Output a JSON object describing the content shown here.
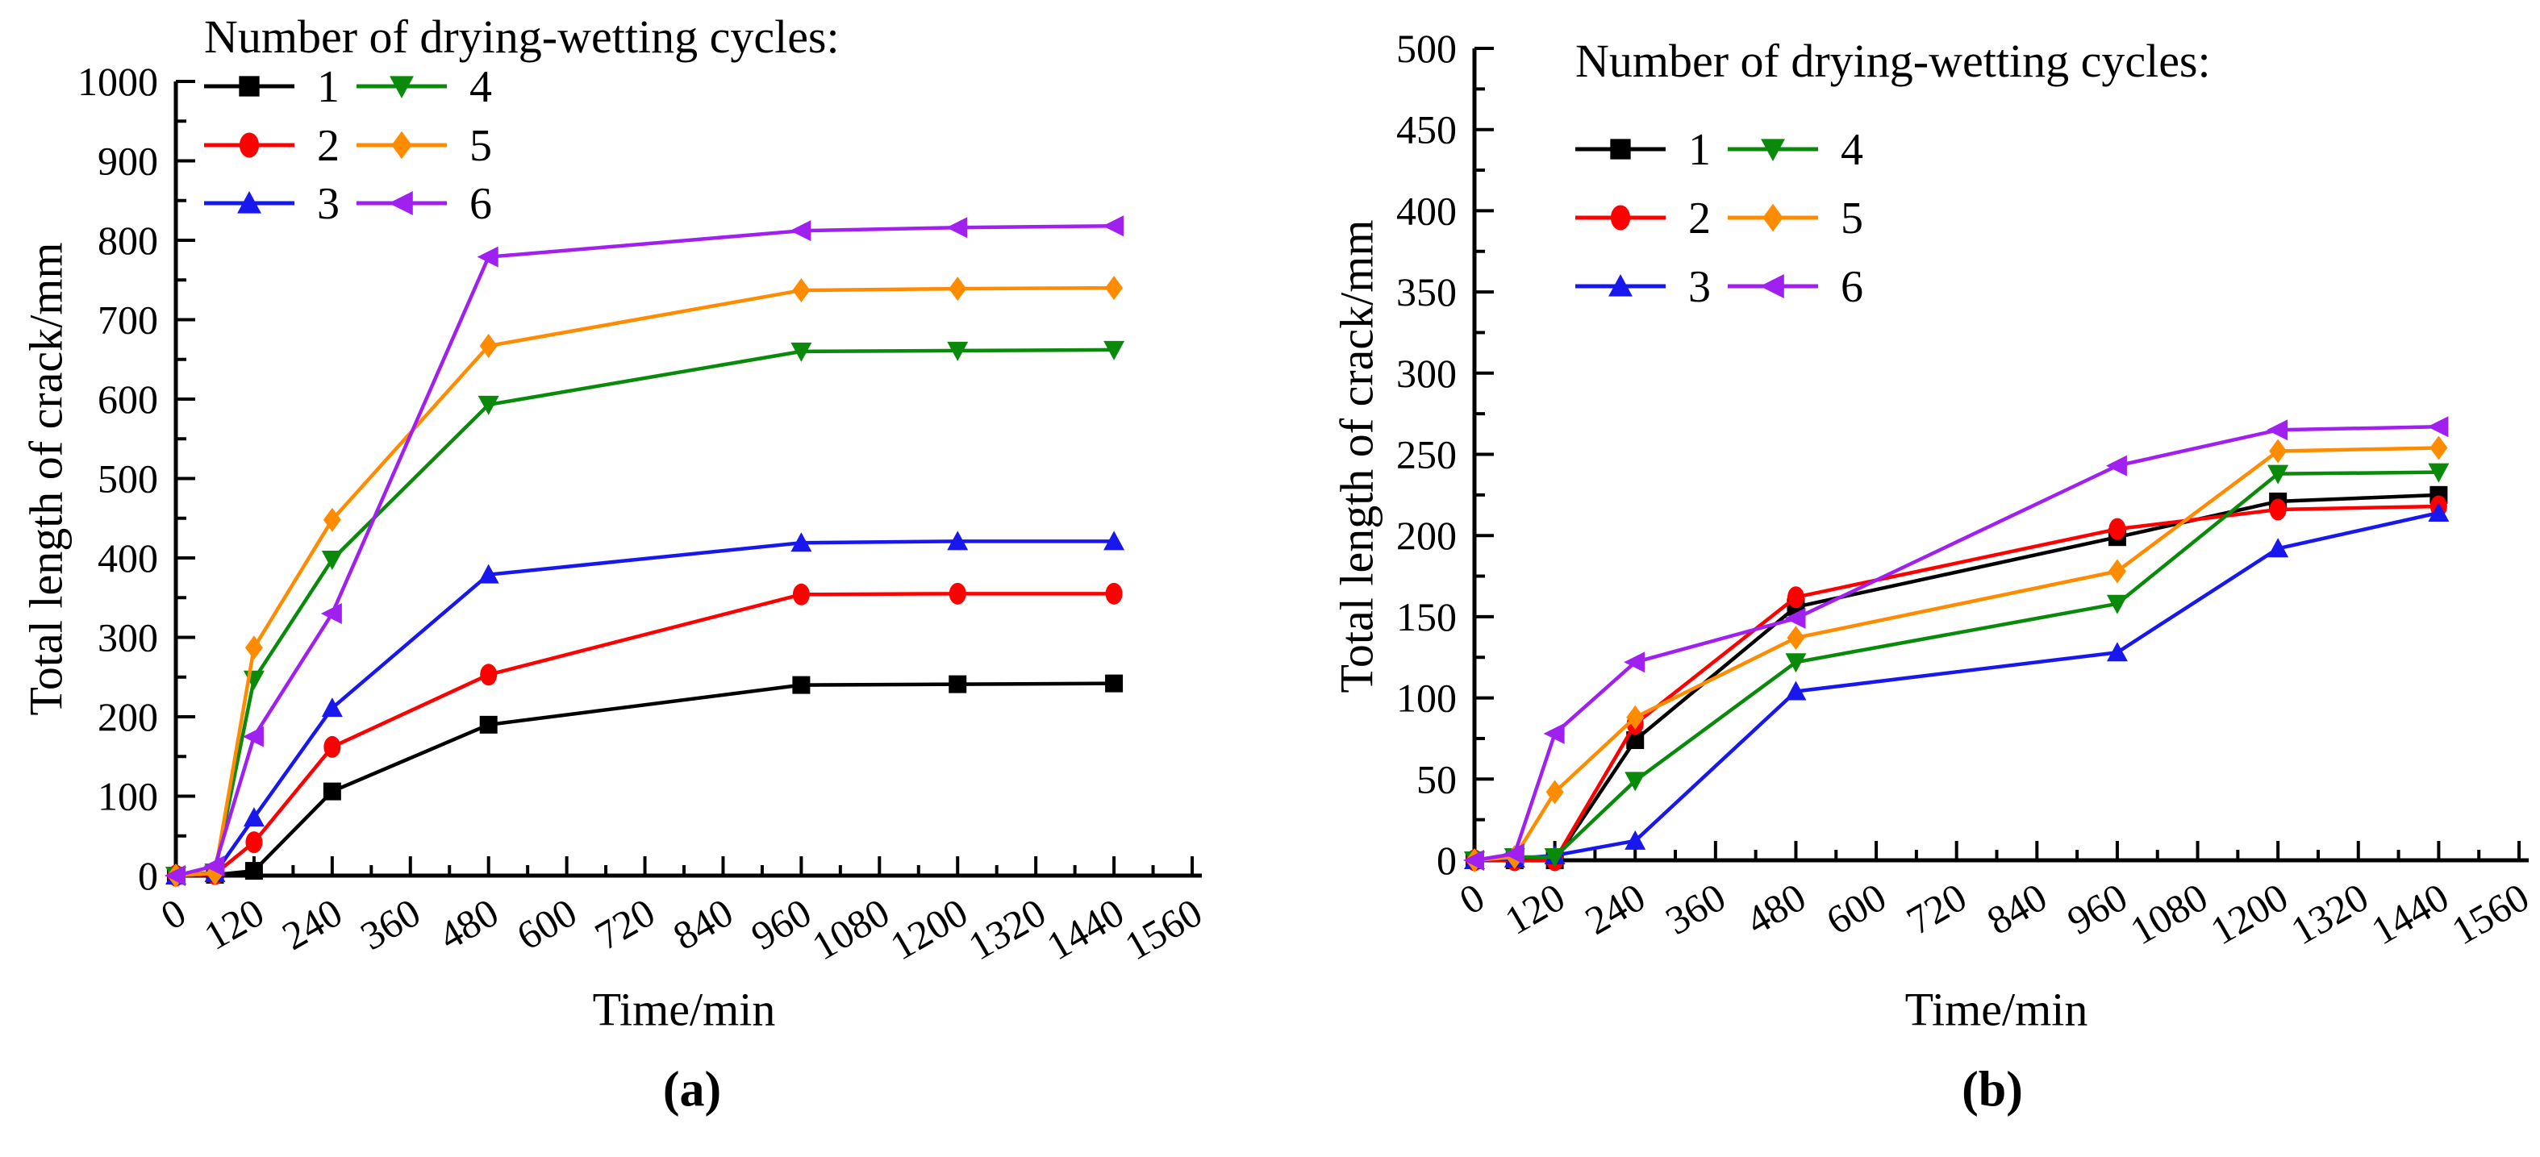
{
  "figure": {
    "panels": [
      {
        "label": "(a)"
      },
      {
        "label": "(b)"
      }
    ]
  },
  "chart_data": [
    {
      "type": "line",
      "title": "",
      "panel": "a",
      "xlabel": "Time/min",
      "ylabel": "Total length of crack/mm",
      "legend_title": "Number of drying-wetting cycles:",
      "legend_position": "top-left",
      "grid": false,
      "xlim": [
        0,
        1560
      ],
      "ylim": [
        0,
        1000
      ],
      "x_major_step": 120,
      "x_minor_step": 60,
      "y_major_step": 100,
      "y_minor_step": 50,
      "x_tick_labels": [
        0,
        120,
        240,
        360,
        480,
        600,
        720,
        840,
        960,
        1080,
        1200,
        1320,
        1440,
        1560
      ],
      "y_tick_labels": [
        0,
        100,
        200,
        300,
        400,
        500,
        600,
        700,
        800,
        900,
        1000
      ],
      "x": [
        0,
        60,
        120,
        240,
        480,
        960,
        1200,
        1440
      ],
      "series": [
        {
          "name": "1",
          "marker": "square",
          "color": "#000000",
          "values": [
            0,
            1,
            6,
            106,
            190,
            240,
            241,
            242
          ]
        },
        {
          "name": "2",
          "marker": "circle",
          "color": "#FF0000",
          "values": [
            0,
            2,
            42,
            162,
            253,
            354,
            355,
            355
          ]
        },
        {
          "name": "3",
          "marker": "triangle-up",
          "color": "#1717EE",
          "values": [
            0,
            3,
            73,
            211,
            379,
            419,
            421,
            421
          ]
        },
        {
          "name": "4",
          "marker": "triangle-down",
          "color": "#0A8A0A",
          "values": [
            0,
            4,
            247,
            398,
            593,
            660,
            661,
            662
          ]
        },
        {
          "name": "5",
          "marker": "diamond",
          "color": "#FF8C00",
          "values": [
            0,
            3,
            287,
            448,
            667,
            737,
            739,
            740
          ]
        },
        {
          "name": "6",
          "marker": "triangle-left",
          "color": "#A020F0",
          "values": [
            0,
            12,
            175,
            330,
            779,
            812,
            816,
            818
          ]
        }
      ]
    },
    {
      "type": "line",
      "title": "",
      "panel": "b",
      "xlabel": "Time/min",
      "ylabel": "Total length of crack/mm",
      "legend_title": "Number of drying-wetting cycles:",
      "legend_position": "top-left",
      "grid": false,
      "xlim": [
        0,
        1560
      ],
      "ylim": [
        0,
        500
      ],
      "x_major_step": 120,
      "x_minor_step": 60,
      "y_major_step": 50,
      "y_minor_step": 25,
      "x_tick_labels": [
        0,
        120,
        240,
        360,
        480,
        600,
        720,
        840,
        960,
        1080,
        1200,
        1320,
        1440,
        1560
      ],
      "y_tick_labels": [
        0,
        50,
        100,
        150,
        200,
        250,
        300,
        350,
        400,
        450,
        500
      ],
      "x": [
        0,
        60,
        120,
        240,
        480,
        960,
        1200,
        1440
      ],
      "series": [
        {
          "name": "1",
          "marker": "square",
          "color": "#000000",
          "values": [
            0,
            0,
            0,
            74,
            156,
            199,
            221,
            225
          ]
        },
        {
          "name": "2",
          "marker": "circle",
          "color": "#FF0000",
          "values": [
            0,
            0,
            0,
            84,
            162,
            204,
            216,
            218
          ]
        },
        {
          "name": "3",
          "marker": "triangle-up",
          "color": "#1717EE",
          "values": [
            0,
            1,
            3,
            12,
            104,
            128,
            192,
            214
          ]
        },
        {
          "name": "4",
          "marker": "triangle-down",
          "color": "#0A8A0A",
          "values": [
            0,
            2,
            2,
            49,
            122,
            158,
            238,
            239
          ]
        },
        {
          "name": "5",
          "marker": "diamond",
          "color": "#FF8C00",
          "values": [
            0,
            2,
            42,
            88,
            137,
            178,
            252,
            254
          ]
        },
        {
          "name": "6",
          "marker": "triangle-left",
          "color": "#A020F0",
          "values": [
            0,
            4,
            78,
            122,
            149,
            243,
            265,
            267
          ]
        }
      ]
    }
  ]
}
